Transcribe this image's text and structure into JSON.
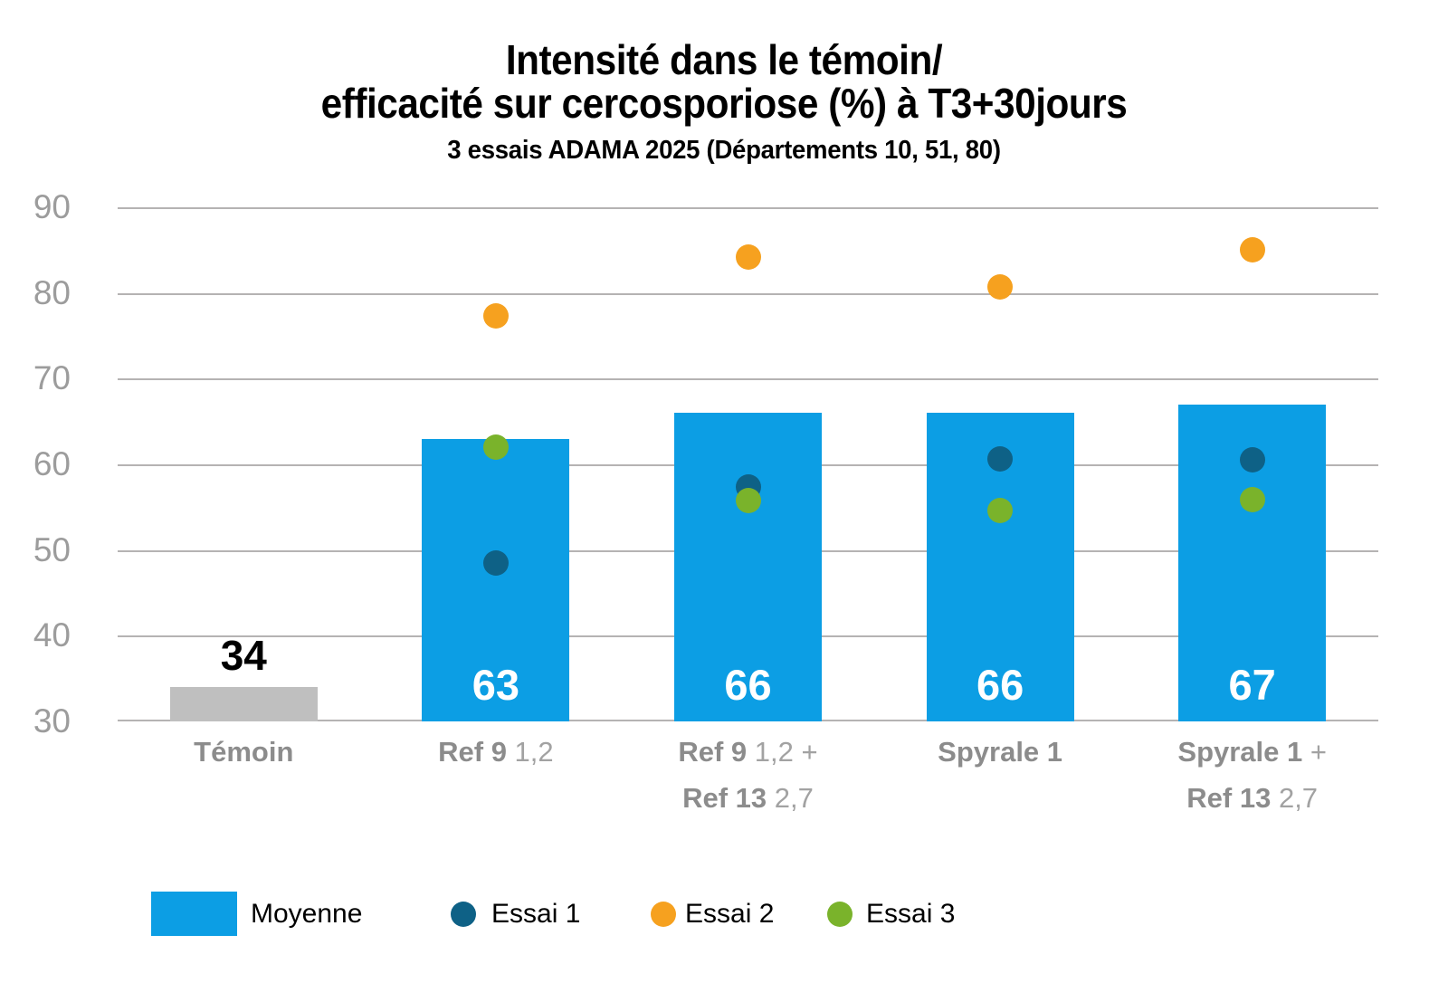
{
  "chart_data": {
    "type": "bar",
    "title_lines": [
      "Intensité dans le témoin/",
      "efficacité sur cercosporiose (%) à T3+30jours"
    ],
    "subtitle": "3 essais ADAMA 2025 (Départements 10, 51, 80)",
    "ylim": [
      30,
      90
    ],
    "yticks": [
      90,
      80,
      70,
      60,
      50,
      40,
      30
    ],
    "grid": true,
    "legend_position": "bottom",
    "categories": [
      "Témoin",
      "Ref 9 1,2",
      "Ref 9 1,2 + Ref 13 2,7",
      "Spyrale 1",
      "Spyrale 1 + Ref 13 2,7"
    ],
    "category_lines": [
      {
        "slug": "temoin",
        "lines": [
          [
            {
              "text": "Témoin",
              "bold": true
            }
          ]
        ]
      },
      {
        "slug": "ref9",
        "lines": [
          [
            {
              "text": "Ref 9",
              "bold": true
            },
            {
              "text": " 1,2",
              "bold": false
            }
          ]
        ]
      },
      {
        "slug": "ref9-ref13",
        "lines": [
          [
            {
              "text": "Ref 9",
              "bold": true
            },
            {
              "text": " 1,2 +",
              "bold": false
            }
          ],
          [
            {
              "text": "Ref 13",
              "bold": true
            },
            {
              "text": " 2,7",
              "bold": false
            }
          ]
        ]
      },
      {
        "slug": "spyrale1",
        "lines": [
          [
            {
              "text": "Spyrale 1",
              "bold": true
            }
          ]
        ]
      },
      {
        "slug": "spyrale1-ref13",
        "lines": [
          [
            {
              "text": "Spyrale 1",
              "bold": true
            },
            {
              "text": " +",
              "bold": false
            }
          ],
          [
            {
              "text": "Ref 13",
              "bold": true
            },
            {
              "text": " 2,7",
              "bold": false
            }
          ]
        ]
      }
    ],
    "bars": {
      "name": "Moyenne",
      "values": [
        34,
        63,
        66,
        66,
        67
      ],
      "labels": [
        "34",
        "63",
        "66",
        "66",
        "67"
      ],
      "colors": [
        "#bfbfbf",
        "#0c9ee4",
        "#0c9ee4",
        "#0c9ee4",
        "#0c9ee4"
      ],
      "label_styles": [
        "above",
        "inside",
        "inside",
        "inside",
        "inside"
      ]
    },
    "points": [
      {
        "name": "Essai 1",
        "slug": "essai-1",
        "color": "#0e6186",
        "values": [
          null,
          48.5,
          57.4,
          60.6,
          60.5
        ]
      },
      {
        "name": "Essai 2",
        "slug": "essai-2",
        "color": "#f6a11f",
        "values": [
          null,
          77.3,
          84.2,
          80.7,
          85.0
        ]
      },
      {
        "name": "Essai 3",
        "slug": "essai-3",
        "color": "#7ab32b",
        "values": [
          null,
          62.0,
          55.8,
          54.6,
          55.9
        ]
      }
    ],
    "legend": [
      {
        "label": "Moyenne",
        "swatch": "rect",
        "color": "#0c9ee4"
      },
      {
        "label": "Essai 1",
        "swatch": "dot",
        "color": "#0e6186"
      },
      {
        "label": "Essai 2",
        "swatch": "dot",
        "color": "#f6a11f"
      },
      {
        "label": "Essai 3",
        "swatch": "dot",
        "color": "#7ab32b"
      }
    ],
    "colors": {
      "grid": "#b5b3b3",
      "ytick_text": "#9c9c9c",
      "category_bold_text": "#8c8c8c",
      "category_light_text": "#a2a2a2",
      "temoin_bar": "#bfbfbf",
      "moyenne_bar": "#0c9ee4",
      "bar_label_inside": "#ffffff",
      "bar_label_above": "#000000"
    }
  }
}
